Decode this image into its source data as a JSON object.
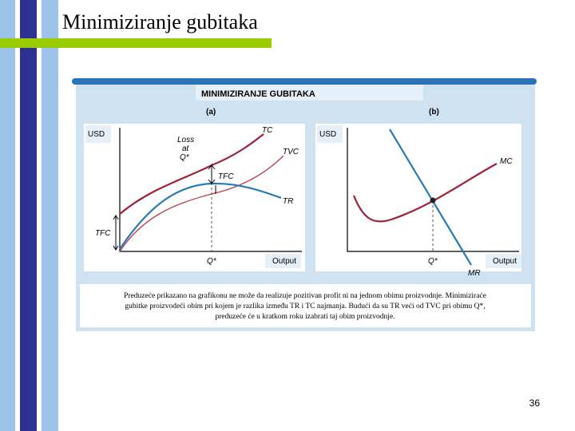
{
  "header": {
    "title": "Minimiziranje gubitaka"
  },
  "figure": {
    "title": "MINIMIZIRANJE GUBITAKA",
    "panel_a": {
      "label": "(a)",
      "y_axis": "USD",
      "x_axis": "Output",
      "curves": {
        "tc": "TC",
        "tvc": "TVC",
        "tr": "TR"
      },
      "loss_label": [
        "Loss",
        "at",
        "Q*"
      ],
      "gap_label": "TFC",
      "tfc_label": "TFC",
      "q_label": "Q*"
    },
    "panel_b": {
      "label": "(b)",
      "y_axis": "USD",
      "x_axis": "Output",
      "curves": {
        "mc": "MC",
        "mr": "MR"
      },
      "q_label": "Q*"
    },
    "caption": [
      "Preduzeće prikazano na grafikonu ne može da realizuje pozitivan profit ni na jednom obimu proizvodnje. Minimiziraće",
      "gubitke proizvodeći obim pri kojem je razlika između TR i TC najmanja. Budući da su TR veći od TVC pri obimu Q*,",
      "preduzeće će u kratkom roku izabrati taj obim proizvodnje."
    ]
  },
  "page_number": "36"
}
